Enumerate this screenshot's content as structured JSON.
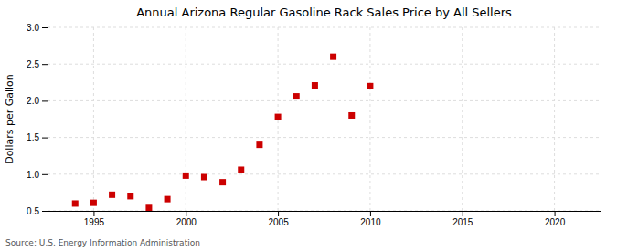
{
  "chart_data": {
    "type": "scatter",
    "title": "Annual Arizona Regular Gasoline Rack Sales Price by All Sellers",
    "ylabel": "Dollars per Gallon",
    "source": "Source: U.S. Energy Information Administration",
    "x": [
      1994,
      1995,
      1996,
      1997,
      1998,
      1999,
      2000,
      2001,
      2002,
      2003,
      2004,
      2005,
      2006,
      2007,
      2008,
      2009,
      2010
    ],
    "values": [
      0.6,
      0.61,
      0.72,
      0.7,
      0.54,
      0.66,
      0.98,
      0.96,
      0.89,
      1.06,
      1.4,
      1.78,
      2.06,
      2.21,
      2.6,
      1.8,
      2.2
    ],
    "color": "#cc0000",
    "marker": "square",
    "xlim": [
      1992.5,
      2022.5
    ],
    "ylim": [
      0.5,
      3.0
    ],
    "xticks": [
      1995,
      2000,
      2005,
      2010,
      2015,
      2020
    ],
    "yticks": [
      0.5,
      {
        "value": 1.0,
        "label": "1.0"
      },
      1.5,
      {
        "value": 2.0,
        "label": "2.0"
      },
      2.5,
      {
        "value": 3.0,
        "label": "3.0"
      }
    ],
    "grid": true
  }
}
